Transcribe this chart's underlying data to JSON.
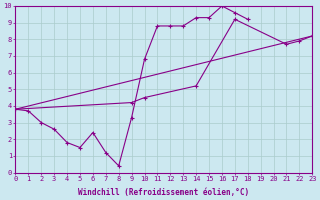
{
  "bg_color": "#cce8f0",
  "grid_color": "#aacccc",
  "line_color": "#880088",
  "xlabel": "Windchill (Refroidissement éolien,°C)",
  "xlim": [
    0,
    23
  ],
  "ylim": [
    0,
    10
  ],
  "xticks": [
    0,
    1,
    2,
    3,
    4,
    5,
    6,
    7,
    8,
    9,
    10,
    11,
    12,
    13,
    14,
    15,
    16,
    17,
    18,
    19,
    20,
    21,
    22,
    23
  ],
  "yticks": [
    0,
    1,
    2,
    3,
    4,
    5,
    6,
    7,
    8,
    9,
    10
  ],
  "line1_x": [
    0,
    1,
    2,
    3,
    4,
    5,
    6,
    7,
    8,
    9,
    10,
    11,
    12,
    13,
    14,
    15,
    16,
    17,
    18
  ],
  "line1_y": [
    3.8,
    3.7,
    3.0,
    2.6,
    1.8,
    1.5,
    2.4,
    1.2,
    0.4,
    3.3,
    6.8,
    8.8,
    8.8,
    8.8,
    9.3,
    9.3,
    10.0,
    9.6,
    9.2
  ],
  "line2_x": [
    0,
    9,
    10,
    14,
    17,
    21,
    22,
    23
  ],
  "line2_y": [
    3.8,
    4.2,
    4.5,
    5.2,
    9.2,
    7.7,
    7.9,
    8.2
  ],
  "line3_x": [
    0,
    23
  ],
  "line3_y": [
    3.8,
    8.2
  ],
  "marker_size": 3,
  "lw": 0.8,
  "xlabel_fontsize": 5.5,
  "tick_fontsize": 5.0
}
